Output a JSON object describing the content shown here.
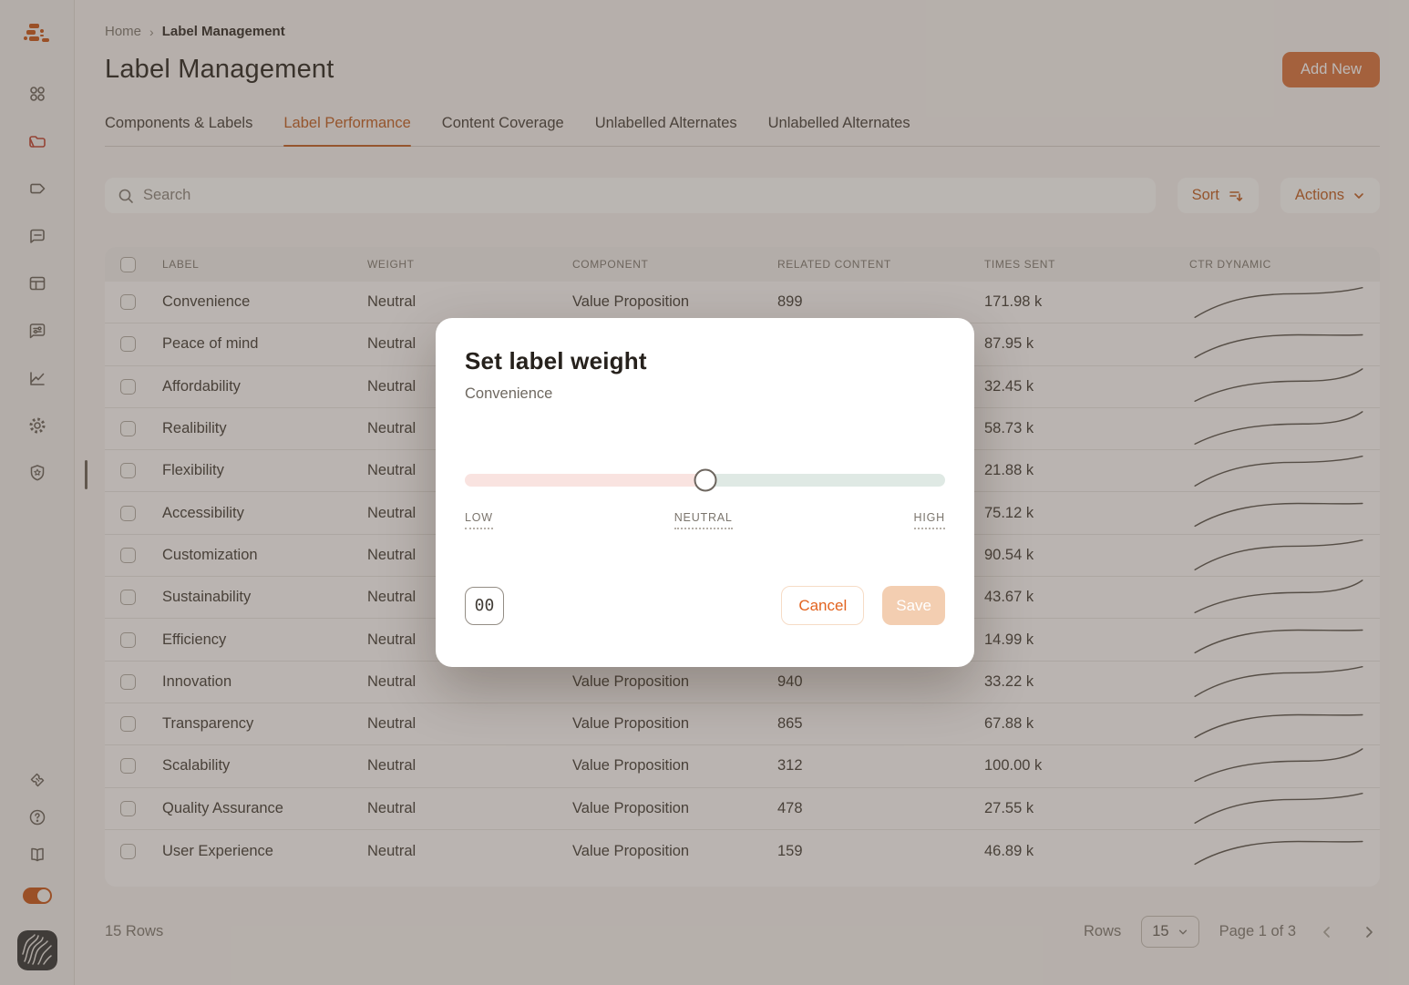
{
  "sidebar": {
    "items": [
      "logo",
      "apps-grid-icon",
      "folder-icon",
      "tag-icon",
      "comment-icon",
      "layout-icon",
      "feedback-settings-icon",
      "chart-icon",
      "gear-icon",
      "shield-star-icon"
    ],
    "bottom_items": [
      "ticket-icon",
      "help-icon",
      "book-icon",
      "theme-toggle",
      "avatar"
    ],
    "toggle_state": "on"
  },
  "breadcrumb": {
    "home": "Home",
    "current": "Label Management"
  },
  "header": {
    "title": "Label Management",
    "add_new": "Add New"
  },
  "tabs": [
    {
      "label": "Components & Labels",
      "active": false
    },
    {
      "label": "Label Performance",
      "active": true
    },
    {
      "label": "Content Coverage",
      "active": false
    },
    {
      "label": "Unlabelled Alternates",
      "active": false
    },
    {
      "label": "Unlabelled Alternates",
      "active": false
    }
  ],
  "toolbar": {
    "search_placeholder": "Search",
    "sort_label": "Sort",
    "actions_label": "Actions"
  },
  "table": {
    "columns": [
      "LABEL",
      "WEIGHT",
      "COMPONENT",
      "RELATED CONTENT",
      "TIMES SENT",
      "CTR DYNAMIC"
    ],
    "rows": [
      {
        "label": "Convenience",
        "weight": "Neutral",
        "component": "Value Proposition",
        "related": "899",
        "times": "171.98 k",
        "spark": 0
      },
      {
        "label": "Peace of mind",
        "weight": "Neutral",
        "component": "",
        "related": "",
        "times": "87.95 k",
        "spark": 2
      },
      {
        "label": "Affordability",
        "weight": "Neutral",
        "component": "",
        "related": "",
        "times": "32.45 k",
        "spark": 1
      },
      {
        "label": "Realibility",
        "weight": "Neutral",
        "component": "",
        "related": "",
        "times": "58.73 k",
        "spark": 1
      },
      {
        "label": "Flexibility",
        "weight": "Neutral",
        "component": "",
        "related": "",
        "times": "21.88 k",
        "spark": 0
      },
      {
        "label": "Accessibility",
        "weight": "Neutral",
        "component": "",
        "related": "",
        "times": "75.12 k",
        "spark": 2
      },
      {
        "label": "Customization",
        "weight": "Neutral",
        "component": "",
        "related": "",
        "times": "90.54 k",
        "spark": 0
      },
      {
        "label": "Sustainability",
        "weight": "Neutral",
        "component": "",
        "related": "",
        "times": "43.67 k",
        "spark": 1
      },
      {
        "label": "Efficiency",
        "weight": "Neutral",
        "component": "",
        "related": "",
        "times": "14.99 k",
        "spark": 2
      },
      {
        "label": "Innovation",
        "weight": "Neutral",
        "component": "Value Proposition",
        "related": "940",
        "times": "33.22 k",
        "spark": 0
      },
      {
        "label": "Transparency",
        "weight": "Neutral",
        "component": "Value Proposition",
        "related": "865",
        "times": "67.88 k",
        "spark": 2
      },
      {
        "label": "Scalability",
        "weight": "Neutral",
        "component": "Value Proposition",
        "related": "312",
        "times": "100.00 k",
        "spark": 1
      },
      {
        "label": "Quality Assurance",
        "weight": "Neutral",
        "component": "Value Proposition",
        "related": "478",
        "times": "27.55 k",
        "spark": 0
      },
      {
        "label": "User Experience",
        "weight": "Neutral",
        "component": "Value Proposition",
        "related": "159",
        "times": "46.89 k",
        "spark": 2
      }
    ]
  },
  "footer": {
    "rows_count": "15 Rows",
    "rows_label": "Rows",
    "rows_per_page": "15",
    "page_info": "Page 1 of 3"
  },
  "modal": {
    "title": "Set label weight",
    "subtitle": "Convenience",
    "slider": {
      "low": "LOW",
      "neutral": "NEUTRAL",
      "high": "HIGH",
      "position_percent": 50
    },
    "weight_value": "00",
    "cancel_label": "Cancel",
    "save_label": "Save"
  },
  "colors": {
    "accent_button": "#dd8352",
    "accent_text": "#c8713b",
    "folder_active": "#c75948",
    "cancel_orange": "#e2631f",
    "save_disabled_bg": "#f3ceb1",
    "slider_low": "#f9e3e0",
    "slider_high": "#dfe9e4",
    "toggle_on": "#cf6a33"
  }
}
